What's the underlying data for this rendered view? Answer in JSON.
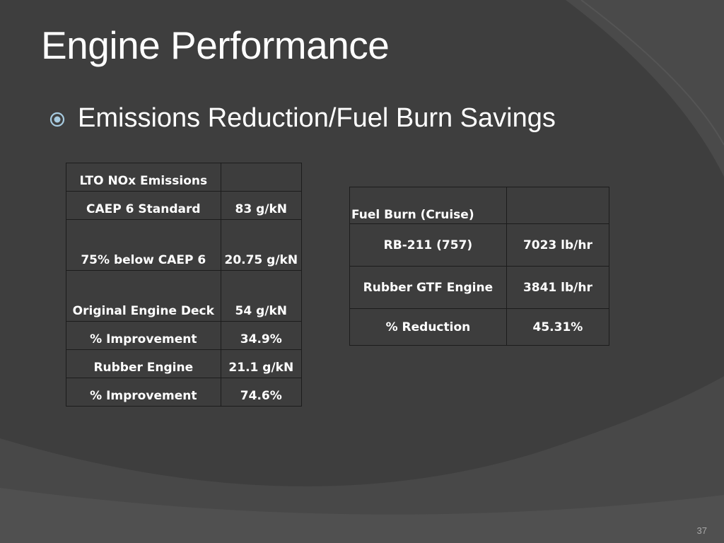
{
  "slide": {
    "title": "Engine Performance",
    "bullet": "Emissions Reduction/Fuel Burn Savings",
    "page_number": "37",
    "accent_color": "#a7cbe0"
  },
  "nox_table": {
    "rows": [
      [
        "LTO NOx Emissions",
        ""
      ],
      [
        "CAEP 6 Standard",
        "83 g/kN"
      ],
      [
        "75% below CAEP 6",
        "20.75 g/kN"
      ],
      [
        "Original Engine Deck",
        "54 g/kN"
      ],
      [
        "% Improvement",
        "34.9%"
      ],
      [
        "Rubber Engine",
        "21.1 g/kN"
      ],
      [
        "% Improvement",
        "74.6%"
      ]
    ]
  },
  "fuel_table": {
    "rows": [
      [
        "Fuel Burn (Cruise)",
        ""
      ],
      [
        "RB-211 (757)",
        "7023 lb/hr"
      ],
      [
        "Rubber GTF Engine",
        "3841 lb/hr"
      ],
      [
        "% Reduction",
        "45.31%"
      ]
    ]
  }
}
